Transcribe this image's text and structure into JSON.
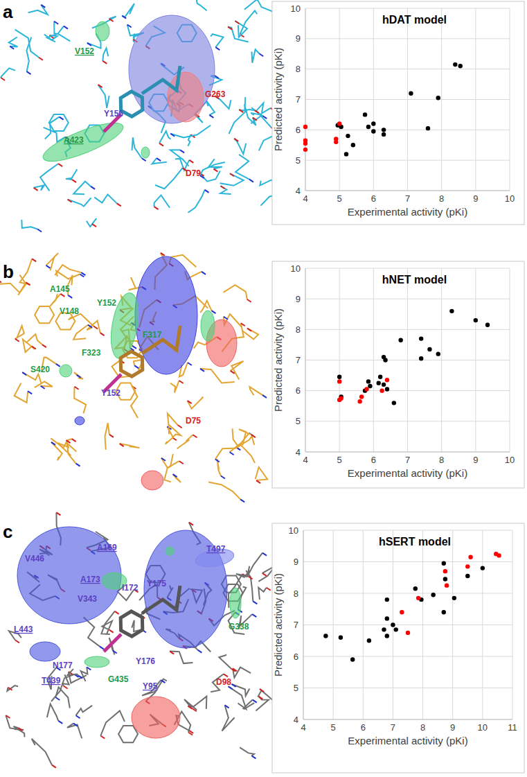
{
  "chart_data": [
    {
      "type": "scatter",
      "title": "hDAT model",
      "x_label": "Experimental activity (pKi)",
      "y_label": "Predicted activity (pKi)",
      "xlim": [
        4,
        10
      ],
      "ylim": [
        4,
        10
      ],
      "xticks": [
        4,
        5,
        6,
        7,
        8,
        9,
        10
      ],
      "yticks": [
        4,
        5,
        6,
        7,
        8,
        9,
        10
      ],
      "grid": true,
      "marker": "circle",
      "series": [
        {
          "color": "#000000",
          "x": [
            4.95,
            5.05,
            5.2,
            5.25,
            5.4,
            5.75,
            5.85,
            6.0,
            6.0,
            6.3,
            6.3,
            7.1,
            7.6,
            7.9,
            8.4,
            8.55
          ],
          "values": [
            6.15,
            6.1,
            5.2,
            5.8,
            5.5,
            6.5,
            6.1,
            6.2,
            5.95,
            6.0,
            5.85,
            7.2,
            6.05,
            7.05,
            8.15,
            8.1
          ]
        },
        {
          "color": "#ff0000",
          "x": [
            4.0,
            4.0,
            4.0,
            4.0,
            4.9,
            4.9,
            5.0
          ],
          "values": [
            6.1,
            5.65,
            5.55,
            5.35,
            5.7,
            5.6,
            6.2
          ]
        }
      ]
    },
    {
      "type": "scatter",
      "title": "hNET model",
      "x_label": "Experimental activity (pKi)",
      "y_label": "Predicted activity (pKi)",
      "xlim": [
        4,
        10
      ],
      "ylim": [
        4,
        10
      ],
      "xticks": [
        4,
        5,
        6,
        7,
        8,
        9,
        10
      ],
      "yticks": [
        4,
        5,
        6,
        7,
        8,
        9,
        10
      ],
      "grid": true,
      "marker": "circle",
      "series": [
        {
          "color": "#000000",
          "x": [
            5.0,
            5.05,
            5.75,
            5.85,
            5.9,
            6.15,
            6.2,
            6.3,
            6.35,
            6.3,
            6.6,
            6.8,
            7.4,
            7.4,
            7.65,
            7.9,
            8.3,
            9.0,
            9.35,
            6.4
          ],
          "values": [
            6.45,
            5.8,
            6.0,
            6.3,
            6.15,
            6.25,
            6.45,
            7.1,
            7.0,
            6.2,
            5.6,
            7.65,
            7.7,
            7.05,
            7.35,
            7.2,
            8.6,
            8.3,
            8.15,
            6.05
          ]
        },
        {
          "color": "#ff0000",
          "x": [
            5.0,
            5.0,
            5.05,
            5.6,
            5.65,
            5.8,
            6.25,
            6.4
          ],
          "values": [
            6.3,
            5.7,
            5.75,
            5.65,
            5.8,
            6.05,
            6.0,
            6.35
          ]
        }
      ]
    },
    {
      "type": "scatter",
      "title": "hSERT model",
      "x_label": "Experimental activity (pKi)",
      "y_label": "Predicted activity (pKi)",
      "xlim": [
        4,
        11
      ],
      "ylim": [
        4,
        10
      ],
      "xticks": [
        4,
        5,
        6,
        7,
        8,
        9,
        10,
        11
      ],
      "yticks": [
        4,
        5,
        6,
        7,
        8,
        9,
        10
      ],
      "grid": true,
      "marker": "circle",
      "series": [
        {
          "color": "#000000",
          "x": [
            4.75,
            5.25,
            5.65,
            6.2,
            6.7,
            6.8,
            6.8,
            6.8,
            7.0,
            7.1,
            7.75,
            7.95,
            8.35,
            8.7,
            8.7,
            8.75,
            9.05,
            9.5,
            10.0
          ],
          "values": [
            6.65,
            6.6,
            5.9,
            6.5,
            6.85,
            6.65,
            7.2,
            7.8,
            7.0,
            6.85,
            8.15,
            7.8,
            7.95,
            7.4,
            8.95,
            8.45,
            7.85,
            8.55,
            8.8
          ]
        },
        {
          "color": "#ff0000",
          "x": [
            7.3,
            7.5,
            7.85,
            8.8,
            8.75,
            9.5,
            9.6,
            10.45,
            10.55
          ],
          "values": [
            7.4,
            6.75,
            7.85,
            8.25,
            8.7,
            8.85,
            9.15,
            9.25,
            9.2
          ]
        }
      ]
    }
  ],
  "structures": [
    {
      "panel": "a",
      "labels": [
        {
          "text": "V152",
          "color": "#1f9a45",
          "underline": true
        },
        {
          "text": "Y156",
          "color": "#5b3fc4",
          "underline": false
        },
        {
          "text": "G263",
          "color": "#d42020",
          "underline": false
        },
        {
          "text": "D79",
          "color": "#d42020",
          "underline": false
        },
        {
          "text": "A423",
          "color": "#1f9a45",
          "underline": true
        }
      ]
    },
    {
      "panel": "b",
      "labels": [
        {
          "text": "A145",
          "color": "#1f9a45",
          "underline": false
        },
        {
          "text": "Y152",
          "color": "#1f9a45",
          "underline": false
        },
        {
          "text": "V148",
          "color": "#1f9a45",
          "underline": false
        },
        {
          "text": "F317",
          "color": "#1f9a45",
          "underline": false
        },
        {
          "text": "F323",
          "color": "#1f9a45",
          "underline": false
        },
        {
          "text": "S420",
          "color": "#1f9a45",
          "underline": false
        },
        {
          "text": "Y152",
          "color": "#5b3fc4",
          "underline": false
        },
        {
          "text": "D75",
          "color": "#d42020",
          "underline": false
        }
      ]
    },
    {
      "panel": "c",
      "labels": [
        {
          "text": "A169",
          "color": "#5b3fc4",
          "underline": true
        },
        {
          "text": "V446",
          "color": "#5b3fc4",
          "underline": false
        },
        {
          "text": "T497",
          "color": "#5b3fc4",
          "underline": true
        },
        {
          "text": "A173",
          "color": "#5b3fc4",
          "underline": true
        },
        {
          "text": "I172",
          "color": "#5b3fc4",
          "underline": false
        },
        {
          "text": "Y175",
          "color": "#5b3fc4",
          "underline": false
        },
        {
          "text": "V343",
          "color": "#5b3fc4",
          "underline": false
        },
        {
          "text": "L443",
          "color": "#5b3fc4",
          "underline": true
        },
        {
          "text": "G338",
          "color": "#1f9a45",
          "underline": false
        },
        {
          "text": "N177",
          "color": "#5b3fc4",
          "underline": false
        },
        {
          "text": "T439",
          "color": "#5b3fc4",
          "underline": true
        },
        {
          "text": "G435",
          "color": "#1f9a45",
          "underline": false
        },
        {
          "text": "Y176",
          "color": "#5b3fc4",
          "underline": false
        },
        {
          "text": "Y95",
          "color": "#5b3fc4",
          "underline": true
        },
        {
          "text": "D98",
          "color": "#d42020",
          "underline": false
        }
      ]
    }
  ]
}
